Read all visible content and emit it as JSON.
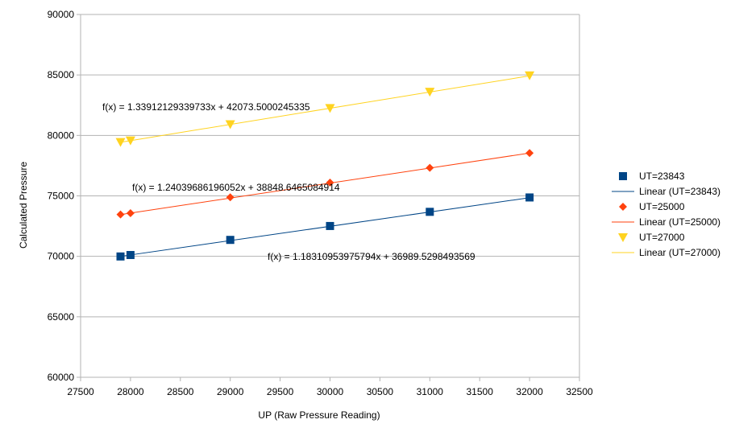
{
  "chart_data": {
    "type": "scatter",
    "title": "",
    "xlabel": "UP (Raw Pressure Reading)",
    "ylabel": "Calculated Pressure",
    "xlim": [
      27500,
      32500
    ],
    "ylim": [
      60000,
      90000
    ],
    "xticks": [
      27500,
      28000,
      28500,
      29000,
      29500,
      30000,
      30500,
      31000,
      31500,
      32000,
      32500
    ],
    "yticks": [
      60000,
      65000,
      70000,
      75000,
      80000,
      85000,
      90000
    ],
    "grid": "horizontal",
    "legend_position": "right",
    "series": [
      {
        "name": "UT=23843",
        "marker": "square",
        "color": "#004586",
        "x": [
          27900,
          28000,
          29000,
          30000,
          31000,
          32000
        ],
        "y": [
          69990,
          70110,
          71360,
          72510,
          73680,
          74870
        ],
        "trendline": {
          "name": "Linear (UT=23843)",
          "slope": 1.18310953975794,
          "intercept": 36989.5298493569,
          "x_range": [
            27900,
            32000
          ],
          "equation": "f(x) = 1.18310953975794x + 36989.5298493569"
        }
      },
      {
        "name": "UT=25000",
        "marker": "diamond",
        "color": "#ff420e",
        "x": [
          27900,
          28000,
          29000,
          30000,
          31000,
          32000
        ],
        "y": [
          73460,
          73570,
          74880,
          76100,
          77320,
          78540
        ],
        "trendline": {
          "name": "Linear (UT=25000)",
          "slope": 1.24039686196052,
          "intercept": 38848.6465084914,
          "x_range": [
            27900,
            32000
          ],
          "equation": "f(x) = 1.24039686196052x + 38848.6465084914"
        }
      },
      {
        "name": "UT=27000",
        "marker": "triangle-down",
        "color": "#ffd320",
        "x": [
          27900,
          28000,
          29000,
          30000,
          31000,
          32000
        ],
        "y": [
          79450,
          79580,
          80920,
          82260,
          83610,
          84960
        ],
        "trendline": {
          "name": "Linear (UT=27000)",
          "slope": 1.33912129339733,
          "intercept": 42073.5000245335,
          "x_range": [
            27900,
            32000
          ],
          "equation": "f(x) = 1.33912129339733x + 42073.5000245335"
        }
      }
    ]
  }
}
